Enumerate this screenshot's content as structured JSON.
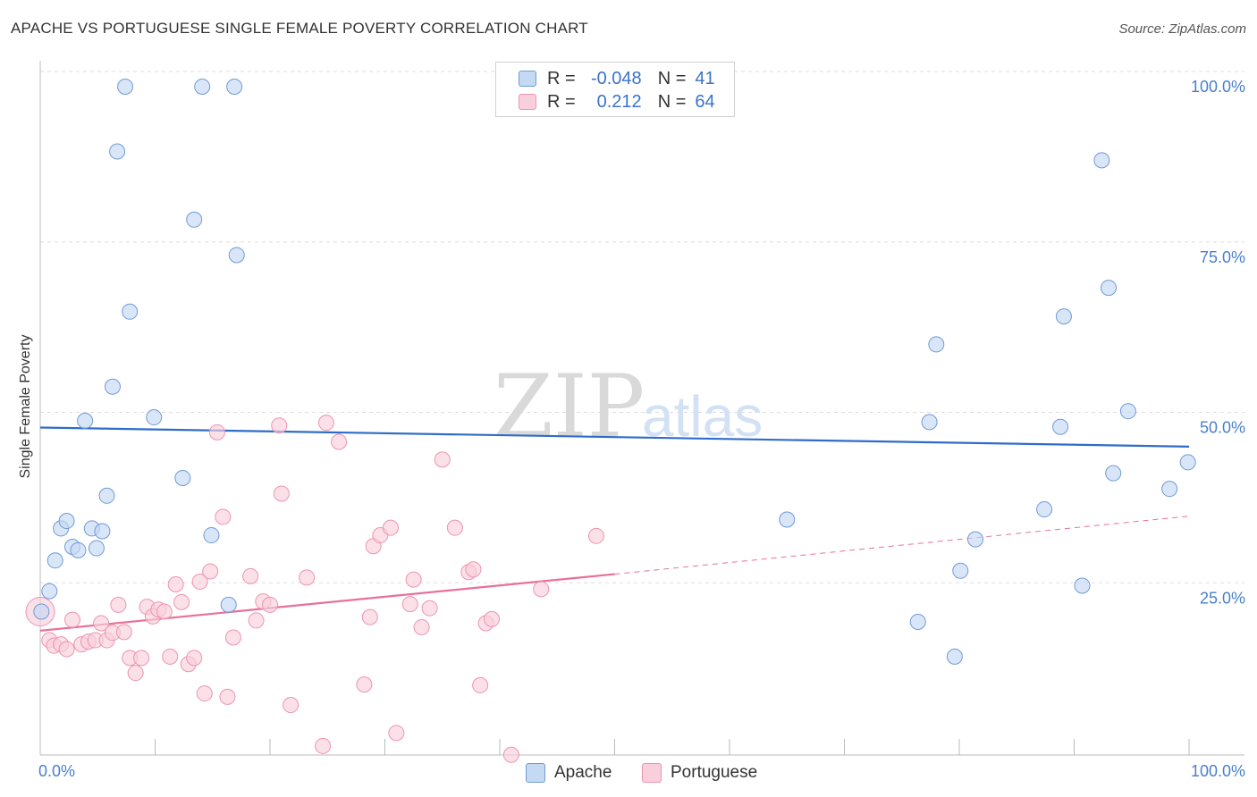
{
  "title": "APACHE VS PORTUGUESE SINGLE FEMALE POVERTY CORRELATION CHART",
  "source": "Source: ZipAtlas.com",
  "watermark": {
    "zip": "ZIP",
    "atlas": "atlas"
  },
  "legend": {
    "rows": [
      {
        "r_label": "R =",
        "r_value": "-0.048",
        "n_label": "N =",
        "n_value": "41"
      },
      {
        "r_label": "R =",
        "r_value": "0.212",
        "n_label": "N =",
        "n_value": "64"
      }
    ]
  },
  "chart_data": {
    "type": "scatter",
    "title": "APACHE VS PORTUGUESE SINGLE FEMALE POVERTY CORRELATION CHART",
    "xlabel": "",
    "ylabel": "Single Female Poverty",
    "xlim": [
      0,
      100
    ],
    "ylim": [
      0,
      100
    ],
    "x_tick_labels": [
      "0.0%",
      "100.0%"
    ],
    "y_ticks": [
      25,
      50,
      75,
      100
    ],
    "y_tick_labels": [
      "25.0%",
      "50.0%",
      "75.0%",
      "100.0%"
    ],
    "grid": true,
    "colors": {
      "apache_fill": "#c5d9f2",
      "apache_stroke": "#6f9bd8",
      "apache_line": "#2f6cc9",
      "portuguese_fill": "#f9cfdc",
      "portuguese_stroke": "#ec94b2",
      "portuguese_line": "#e8709a",
      "tick_text": "#4a7fcc",
      "grid": "#dddddd",
      "axis": "#bbbbbb"
    },
    "series": [
      {
        "name": "Apache",
        "r": -0.048,
        "n": 41,
        "trend": {
          "x0": 0,
          "y0": 50.0,
          "x1": 100,
          "y1": 47.2
        },
        "points": [
          [
            0.1,
            23
          ],
          [
            0.8,
            26
          ],
          [
            1.3,
            30.5
          ],
          [
            1.8,
            35.2
          ],
          [
            2.3,
            36.3
          ],
          [
            2.8,
            32.5
          ],
          [
            3.3,
            32
          ],
          [
            3.9,
            51
          ],
          [
            4.5,
            35.2
          ],
          [
            4.9,
            32.3
          ],
          [
            5.4,
            34.8
          ],
          [
            5.8,
            40
          ],
          [
            6.3,
            56
          ],
          [
            6.7,
            90.5
          ],
          [
            7.4,
            100
          ],
          [
            7.8,
            67
          ],
          [
            9.9,
            51.5
          ],
          [
            12.4,
            42.6
          ],
          [
            13.4,
            80.5
          ],
          [
            14.1,
            100
          ],
          [
            14.9,
            34.2
          ],
          [
            16.4,
            24
          ],
          [
            16.9,
            100
          ],
          [
            17.1,
            75.3
          ],
          [
            65.0,
            36.5
          ],
          [
            76.4,
            21.5
          ],
          [
            77.4,
            50.8
          ],
          [
            78.0,
            62.2
          ],
          [
            79.6,
            16.4
          ],
          [
            80.1,
            29
          ],
          [
            81.4,
            33.6
          ],
          [
            87.4,
            38
          ],
          [
            88.8,
            50.1
          ],
          [
            89.1,
            66.3
          ],
          [
            90.7,
            26.8
          ],
          [
            92.4,
            89.2
          ],
          [
            93.0,
            70.5
          ],
          [
            93.4,
            43.3
          ],
          [
            94.7,
            52.4
          ],
          [
            98.3,
            41
          ],
          [
            99.9,
            44.9
          ]
        ]
      },
      {
        "name": "Portuguese",
        "r": 0.212,
        "n": 64,
        "trend": {
          "x0": 0,
          "y0": 20.2,
          "x1": 50,
          "y1": 28.5,
          "x1_dashed": 100,
          "y1_dashed": 37.0
        },
        "points": [
          [
            0.0,
            23
          ],
          [
            0.8,
            18.8
          ],
          [
            1.2,
            18
          ],
          [
            1.8,
            18.2
          ],
          [
            2.3,
            17.5
          ],
          [
            2.8,
            21.8
          ],
          [
            3.6,
            18.2
          ],
          [
            4.2,
            18.6
          ],
          [
            4.8,
            18.8
          ],
          [
            5.3,
            21.3
          ],
          [
            5.8,
            18.8
          ],
          [
            6.3,
            19.9
          ],
          [
            6.8,
            24
          ],
          [
            7.3,
            20
          ],
          [
            7.8,
            16.2
          ],
          [
            8.3,
            14
          ],
          [
            8.8,
            16.2
          ],
          [
            9.3,
            23.7
          ],
          [
            9.8,
            22.3
          ],
          [
            10.3,
            23.3
          ],
          [
            10.8,
            23
          ],
          [
            11.3,
            16.4
          ],
          [
            11.8,
            27
          ],
          [
            12.3,
            24.4
          ],
          [
            12.9,
            15.3
          ],
          [
            13.4,
            16.2
          ],
          [
            13.9,
            27.4
          ],
          [
            14.3,
            11
          ],
          [
            14.8,
            28.9
          ],
          [
            15.4,
            49.3
          ],
          [
            15.9,
            36.9
          ],
          [
            16.3,
            10.5
          ],
          [
            16.8,
            19.2
          ],
          [
            18.3,
            28.2
          ],
          [
            18.8,
            21.7
          ],
          [
            19.4,
            24.5
          ],
          [
            20.0,
            24
          ],
          [
            20.8,
            50.3
          ],
          [
            21.8,
            9.3
          ],
          [
            23.2,
            28
          ],
          [
            24.6,
            3.3
          ],
          [
            24.9,
            50.7
          ],
          [
            26.0,
            47.9
          ],
          [
            28.2,
            12.3
          ],
          [
            28.7,
            22.2
          ],
          [
            29.0,
            32.6
          ],
          [
            29.6,
            34.2
          ],
          [
            30.5,
            35.3
          ],
          [
            31.0,
            5.2
          ],
          [
            32.2,
            24.1
          ],
          [
            32.5,
            27.7
          ],
          [
            33.2,
            20.7
          ],
          [
            33.9,
            23.5
          ],
          [
            35.0,
            45.3
          ],
          [
            36.1,
            35.3
          ],
          [
            37.3,
            28.8
          ],
          [
            37.7,
            29.2
          ],
          [
            38.3,
            12.2
          ],
          [
            38.8,
            21.3
          ],
          [
            39.3,
            21.9
          ],
          [
            41.0,
            2
          ],
          [
            43.6,
            26.3
          ],
          [
            48.4,
            34.1
          ],
          [
            21.0,
            40.3
          ]
        ]
      }
    ]
  },
  "bottom_legend": [
    "Apache",
    "Portuguese"
  ]
}
